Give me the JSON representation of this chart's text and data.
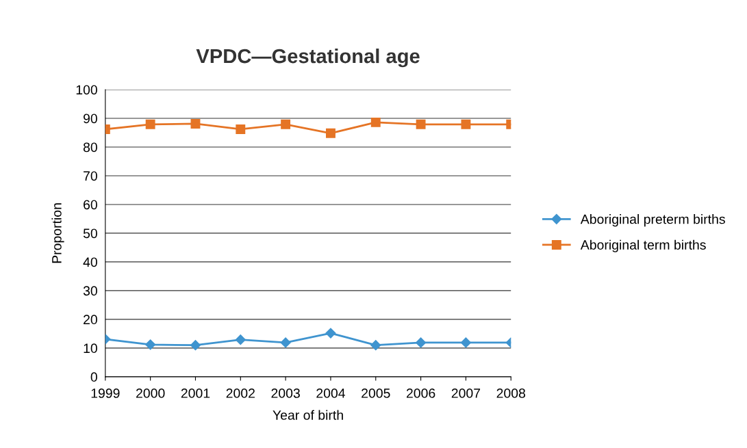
{
  "chart_data": {
    "type": "line",
    "title": "VPDC—Gestational age",
    "xlabel": "Year of birth",
    "ylabel": "Proportion",
    "categories": [
      "1999",
      "2000",
      "2001",
      "2002",
      "2003",
      "2004",
      "2005",
      "2006",
      "2007",
      "2008"
    ],
    "series": [
      {
        "name": "Aboriginal preterm births",
        "color": "#3f94cf",
        "marker": "diamond",
        "values": [
          13.1,
          11.2,
          11.0,
          12.9,
          11.9,
          15.2,
          11.0,
          11.9,
          11.9,
          11.9
        ]
      },
      {
        "name": "Aboriginal term births",
        "color": "#e57425",
        "marker": "square",
        "values": [
          86.2,
          87.9,
          88.1,
          86.2,
          87.9,
          84.8,
          88.6,
          87.9,
          87.9,
          87.9
        ]
      }
    ],
    "ylim": [
      0,
      100
    ],
    "yticks": [
      0,
      10,
      20,
      30,
      40,
      50,
      60,
      70,
      80,
      90,
      100
    ],
    "grid": "y",
    "legend": "right"
  }
}
